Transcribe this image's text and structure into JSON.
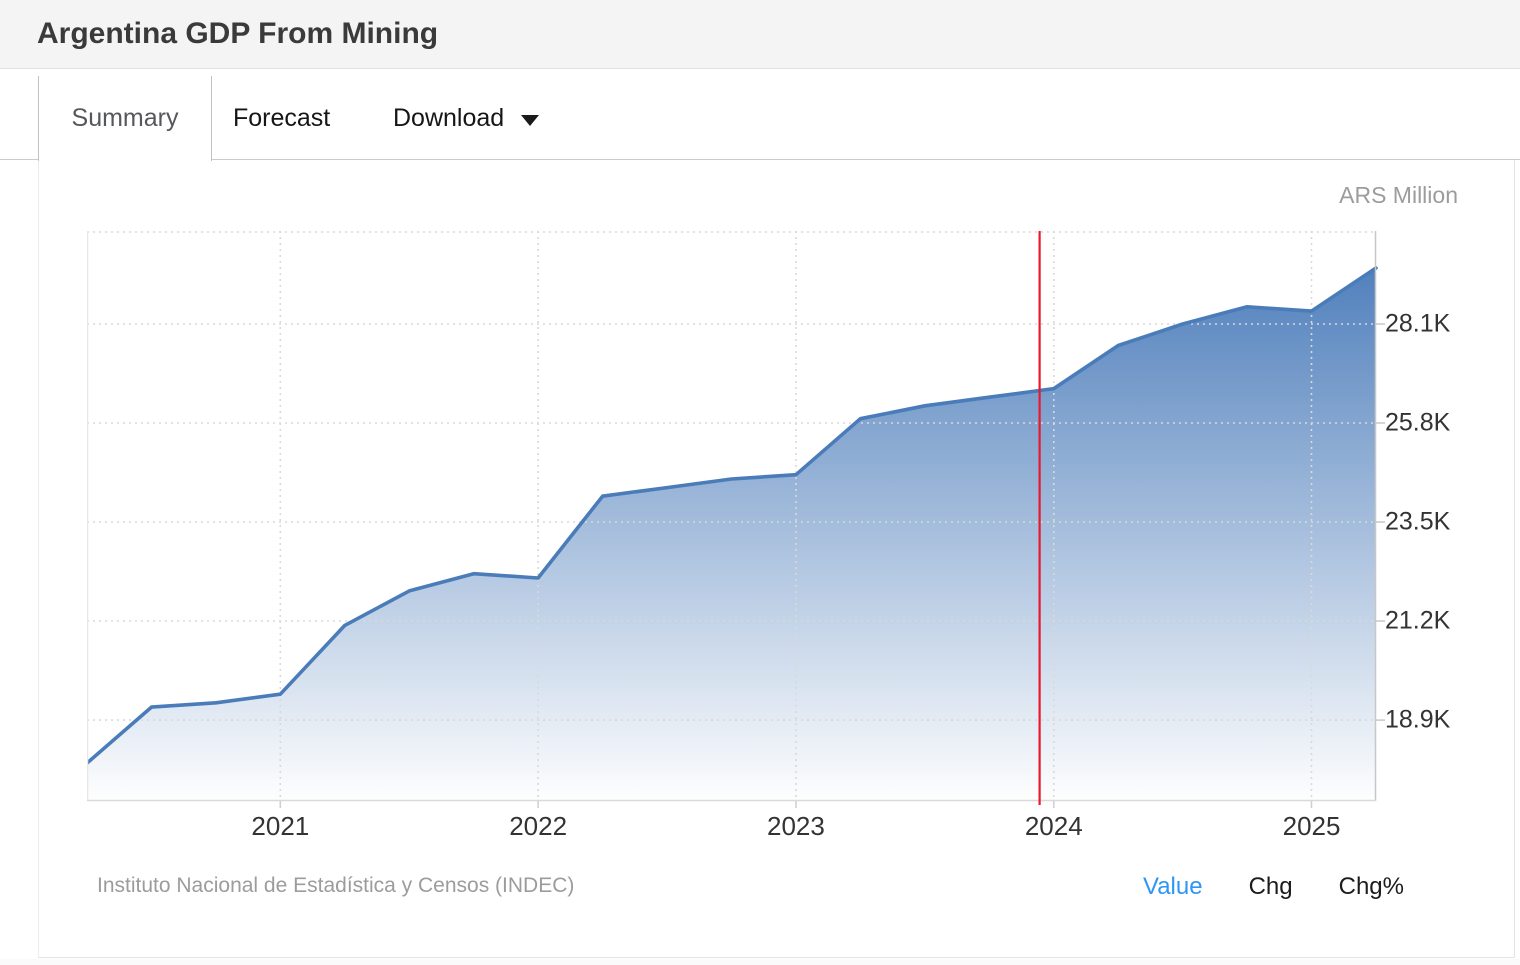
{
  "header": {
    "title": "Argentina GDP From Mining"
  },
  "tabs": [
    {
      "label": "Summary",
      "active": true,
      "has_dropdown": false
    },
    {
      "label": "Forecast",
      "active": false,
      "has_dropdown": false
    },
    {
      "label": "Download",
      "active": false,
      "has_dropdown": true
    }
  ],
  "chart": {
    "unit_label": "ARS Million"
  },
  "footer": {
    "source": "Instituto Nacional de Estadística y Censos (INDEC)",
    "links": [
      {
        "label": "Value",
        "active": true
      },
      {
        "label": "Chg",
        "active": false
      },
      {
        "label": "Chg%",
        "active": false
      }
    ]
  },
  "colors": {
    "line_blue": "#4a7cba",
    "fill_top": "#4f7fbc",
    "fill_bottom": "#fefefe",
    "divider_red": "#e9182c",
    "link_blue": "#2e96f4",
    "grid_gray": "#d9d9d9"
  },
  "chart_data": {
    "type": "area",
    "title": "Argentina GDP From Mining",
    "unit": "ARS Million",
    "x": [
      "2020-Q2",
      "2020-Q3",
      "2020-Q4",
      "2021-Q1",
      "2021-Q2",
      "2021-Q3",
      "2021-Q4",
      "2022-Q1",
      "2022-Q2",
      "2022-Q3",
      "2022-Q4",
      "2023-Q1",
      "2023-Q2",
      "2023-Q3",
      "2023-Q4",
      "2024-Q1",
      "2024-Q2",
      "2024-Q3",
      "2024-Q4",
      "2025-Q1",
      "2025-Q2"
    ],
    "values": [
      17900,
      19200,
      19300,
      19500,
      21100,
      21900,
      22300,
      22200,
      24100,
      24300,
      24500,
      24600,
      25900,
      26200,
      26400,
      26600,
      27600,
      28100,
      28500,
      28400,
      29400
    ],
    "y_ticks": [
      {
        "value": 28100,
        "label": "28.1K"
      },
      {
        "value": 25800,
        "label": "25.8K"
      },
      {
        "value": 23500,
        "label": "23.5K"
      },
      {
        "value": 21200,
        "label": "21.2K"
      },
      {
        "value": 18900,
        "label": "18.9K"
      }
    ],
    "x_ticks": [
      {
        "label": "2021",
        "at": "2021-Q1"
      },
      {
        "label": "2022",
        "at": "2022-Q1"
      },
      {
        "label": "2023",
        "at": "2023-Q1"
      },
      {
        "label": "2024",
        "at": "2024-Q1"
      },
      {
        "label": "2025",
        "at": "2025-Q1"
      }
    ],
    "y_range": [
      17020,
      30260
    ],
    "grid": "dotted",
    "legend": "none",
    "divider": {
      "x_fraction": 0.739
    }
  }
}
